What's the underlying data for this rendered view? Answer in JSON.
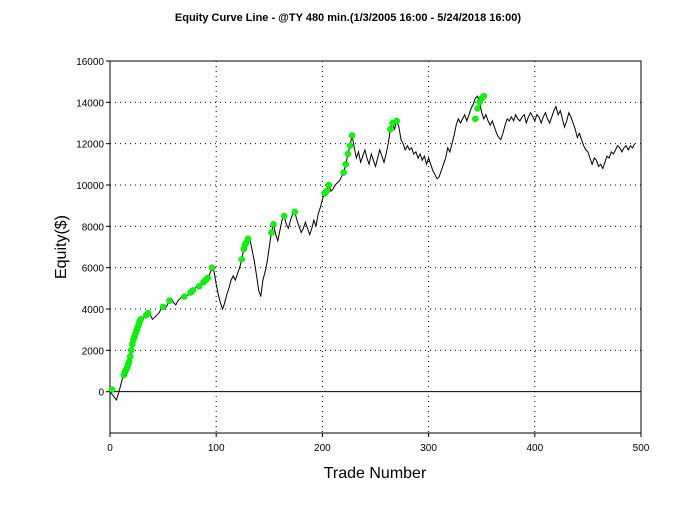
{
  "chart_data": {
    "type": "line",
    "title": "Equity Curve Line - @TY 480 min.(1/3/2005 16:00 - 5/24/2018 16:00)",
    "xlabel": "Trade Number",
    "ylabel": "Equity($)",
    "xlim": [
      0,
      500
    ],
    "ylim": [
      -2000,
      16000
    ],
    "xticks": [
      0,
      100,
      200,
      300,
      400,
      500
    ],
    "yticks": [
      0,
      2000,
      4000,
      6000,
      8000,
      10000,
      12000,
      14000,
      16000
    ],
    "grid": true,
    "series": [
      {
        "color": "#000000",
        "points": [
          [
            0,
            0
          ],
          [
            3,
            -200
          ],
          [
            6,
            -400
          ],
          [
            8,
            -100
          ],
          [
            10,
            300
          ],
          [
            12,
            700
          ],
          [
            14,
            1000
          ],
          [
            16,
            1100
          ],
          [
            18,
            1500
          ],
          [
            20,
            2000
          ],
          [
            22,
            2500
          ],
          [
            24,
            2800
          ],
          [
            26,
            3100
          ],
          [
            28,
            3300
          ],
          [
            30,
            3500
          ],
          [
            32,
            3600
          ],
          [
            34,
            3700
          ],
          [
            36,
            3800
          ],
          [
            38,
            3700
          ],
          [
            40,
            3500
          ],
          [
            42,
            3600
          ],
          [
            44,
            3700
          ],
          [
            46,
            3800
          ],
          [
            48,
            4000
          ],
          [
            50,
            4100
          ],
          [
            52,
            4000
          ],
          [
            54,
            4200
          ],
          [
            56,
            4400
          ],
          [
            58,
            4500
          ],
          [
            60,
            4300
          ],
          [
            62,
            4200
          ],
          [
            64,
            4400
          ],
          [
            66,
            4500
          ],
          [
            68,
            4600
          ],
          [
            70,
            4700
          ],
          [
            72,
            4600
          ],
          [
            74,
            4700
          ],
          [
            76,
            4800
          ],
          [
            78,
            4900
          ],
          [
            80,
            5000
          ],
          [
            82,
            5100
          ],
          [
            84,
            5100
          ],
          [
            86,
            5200
          ],
          [
            88,
            5300
          ],
          [
            90,
            5400
          ],
          [
            92,
            5500
          ],
          [
            94,
            5700
          ],
          [
            96,
            6000
          ],
          [
            98,
            5800
          ],
          [
            100,
            5200
          ],
          [
            102,
            4700
          ],
          [
            104,
            4300
          ],
          [
            106,
            4000
          ],
          [
            108,
            4300
          ],
          [
            110,
            4700
          ],
          [
            112,
            5000
          ],
          [
            114,
            5400
          ],
          [
            116,
            5600
          ],
          [
            118,
            5400
          ],
          [
            120,
            5700
          ],
          [
            122,
            6000
          ],
          [
            124,
            6400
          ],
          [
            126,
            6900
          ],
          [
            128,
            7200
          ],
          [
            130,
            7400
          ],
          [
            132,
            7300
          ],
          [
            134,
            6800
          ],
          [
            136,
            6300
          ],
          [
            138,
            5600
          ],
          [
            140,
            4900
          ],
          [
            142,
            4600
          ],
          [
            144,
            5400
          ],
          [
            146,
            5800
          ],
          [
            148,
            6300
          ],
          [
            150,
            7000
          ],
          [
            152,
            7700
          ],
          [
            154,
            8100
          ],
          [
            156,
            7600
          ],
          [
            158,
            7300
          ],
          [
            160,
            7800
          ],
          [
            162,
            8300
          ],
          [
            164,
            8500
          ],
          [
            166,
            8100
          ],
          [
            168,
            7900
          ],
          [
            170,
            8300
          ],
          [
            172,
            8600
          ],
          [
            174,
            8700
          ],
          [
            176,
            8300
          ],
          [
            178,
            8000
          ],
          [
            180,
            7700
          ],
          [
            182,
            7900
          ],
          [
            184,
            8200
          ],
          [
            186,
            7900
          ],
          [
            188,
            7600
          ],
          [
            190,
            7900
          ],
          [
            192,
            8300
          ],
          [
            194,
            8000
          ],
          [
            196,
            8600
          ],
          [
            198,
            8900
          ],
          [
            200,
            9300
          ],
          [
            202,
            9600
          ],
          [
            204,
            9700
          ],
          [
            206,
            10000
          ],
          [
            208,
            9700
          ],
          [
            210,
            9800
          ],
          [
            212,
            10000
          ],
          [
            214,
            10100
          ],
          [
            216,
            10200
          ],
          [
            218,
            10400
          ],
          [
            220,
            10600
          ],
          [
            222,
            11000
          ],
          [
            224,
            11500
          ],
          [
            226,
            11900
          ],
          [
            228,
            12400
          ],
          [
            230,
            11800
          ],
          [
            232,
            11300
          ],
          [
            234,
            11600
          ],
          [
            236,
            11100
          ],
          [
            238,
            11400
          ],
          [
            240,
            11700
          ],
          [
            242,
            11300
          ],
          [
            244,
            11000
          ],
          [
            246,
            11500
          ],
          [
            248,
            11200
          ],
          [
            250,
            10900
          ],
          [
            252,
            11300
          ],
          [
            254,
            11700
          ],
          [
            256,
            11400
          ],
          [
            258,
            11100
          ],
          [
            260,
            11500
          ],
          [
            262,
            12000
          ],
          [
            264,
            12700
          ],
          [
            266,
            13000
          ],
          [
            268,
            12700
          ],
          [
            270,
            13100
          ],
          [
            272,
            12800
          ],
          [
            274,
            12200
          ],
          [
            276,
            12000
          ],
          [
            278,
            11700
          ],
          [
            280,
            11900
          ],
          [
            282,
            11700
          ],
          [
            284,
            11800
          ],
          [
            286,
            11500
          ],
          [
            288,
            11600
          ],
          [
            290,
            11300
          ],
          [
            292,
            11500
          ],
          [
            294,
            11200
          ],
          [
            296,
            11400
          ],
          [
            298,
            11000
          ],
          [
            300,
            11300
          ],
          [
            302,
            11000
          ],
          [
            304,
            10700
          ],
          [
            306,
            10500
          ],
          [
            308,
            10300
          ],
          [
            310,
            10400
          ],
          [
            312,
            10700
          ],
          [
            314,
            11000
          ],
          [
            316,
            11300
          ],
          [
            318,
            11800
          ],
          [
            320,
            11600
          ],
          [
            322,
            12000
          ],
          [
            324,
            12400
          ],
          [
            326,
            12900
          ],
          [
            328,
            13200
          ],
          [
            330,
            13000
          ],
          [
            332,
            13200
          ],
          [
            334,
            13400
          ],
          [
            336,
            13100
          ],
          [
            338,
            13400
          ],
          [
            340,
            13700
          ],
          [
            342,
            13900
          ],
          [
            344,
            14200
          ],
          [
            346,
            14300
          ],
          [
            348,
            14000
          ],
          [
            350,
            13500
          ],
          [
            352,
            13200
          ],
          [
            354,
            13400
          ],
          [
            356,
            13100
          ],
          [
            358,
            12900
          ],
          [
            360,
            13100
          ],
          [
            362,
            12800
          ],
          [
            364,
            12500
          ],
          [
            366,
            12300
          ],
          [
            368,
            12200
          ],
          [
            370,
            12500
          ],
          [
            372,
            12900
          ],
          [
            374,
            13200
          ],
          [
            376,
            13100
          ],
          [
            378,
            13300
          ],
          [
            380,
            13100
          ],
          [
            382,
            13400
          ],
          [
            384,
            13200
          ],
          [
            386,
            13100
          ],
          [
            388,
            13300
          ],
          [
            390,
            13400
          ],
          [
            392,
            13000
          ],
          [
            394,
            13300
          ],
          [
            396,
            13500
          ],
          [
            398,
            13300
          ],
          [
            400,
            13100
          ],
          [
            402,
            13400
          ],
          [
            404,
            13300
          ],
          [
            406,
            13000
          ],
          [
            408,
            13300
          ],
          [
            410,
            13500
          ],
          [
            412,
            13200
          ],
          [
            414,
            13000
          ],
          [
            416,
            13300
          ],
          [
            418,
            13600
          ],
          [
            420,
            13800
          ],
          [
            422,
            13400
          ],
          [
            424,
            13600
          ],
          [
            426,
            13200
          ],
          [
            428,
            12800
          ],
          [
            430,
            13100
          ],
          [
            432,
            13500
          ],
          [
            434,
            13300
          ],
          [
            436,
            13000
          ],
          [
            438,
            12700
          ],
          [
            440,
            12300
          ],
          [
            442,
            12500
          ],
          [
            444,
            12200
          ],
          [
            446,
            11900
          ],
          [
            448,
            11700
          ],
          [
            450,
            11600
          ],
          [
            452,
            11300
          ],
          [
            454,
            11000
          ],
          [
            456,
            11300
          ],
          [
            458,
            11200
          ],
          [
            460,
            10900
          ],
          [
            462,
            11000
          ],
          [
            464,
            10800
          ],
          [
            466,
            11100
          ],
          [
            468,
            11400
          ],
          [
            470,
            11300
          ],
          [
            472,
            11600
          ],
          [
            474,
            11500
          ],
          [
            476,
            11700
          ],
          [
            478,
            11900
          ],
          [
            480,
            11800
          ],
          [
            482,
            11600
          ],
          [
            484,
            11800
          ],
          [
            486,
            11900
          ],
          [
            488,
            11700
          ],
          [
            490,
            11900
          ],
          [
            492,
            11800
          ],
          [
            494,
            12000
          ]
        ]
      }
    ],
    "highlight_points": {
      "color": "#00ff00",
      "points": [
        [
          2,
          100
        ],
        [
          13,
          800
        ],
        [
          14,
          950
        ],
        [
          15,
          1050
        ],
        [
          16,
          1150
        ],
        [
          17,
          1300
        ],
        [
          18,
          1450
        ],
        [
          19,
          1700
        ],
        [
          20,
          2000
        ],
        [
          21,
          2300
        ],
        [
          22,
          2500
        ],
        [
          23,
          2650
        ],
        [
          24,
          2800
        ],
        [
          25,
          2950
        ],
        [
          26,
          3100
        ],
        [
          27,
          3250
        ],
        [
          28,
          3400
        ],
        [
          29,
          3500
        ],
        [
          34,
          3700
        ],
        [
          36,
          3800
        ],
        [
          50,
          4100
        ],
        [
          56,
          4400
        ],
        [
          70,
          4600
        ],
        [
          76,
          4800
        ],
        [
          78,
          4900
        ],
        [
          84,
          5100
        ],
        [
          88,
          5300
        ],
        [
          90,
          5400
        ],
        [
          92,
          5500
        ],
        [
          96,
          6000
        ],
        [
          124,
          6400
        ],
        [
          126,
          6900
        ],
        [
          127,
          7100
        ],
        [
          128,
          7200
        ],
        [
          130,
          7400
        ],
        [
          152,
          7700
        ],
        [
          154,
          8100
        ],
        [
          164,
          8500
        ],
        [
          174,
          8700
        ],
        [
          202,
          9600
        ],
        [
          204,
          9700
        ],
        [
          206,
          10000
        ],
        [
          220,
          10600
        ],
        [
          222,
          11000
        ],
        [
          224,
          11500
        ],
        [
          226,
          11900
        ],
        [
          228,
          12400
        ],
        [
          264,
          12700
        ],
        [
          266,
          13000
        ],
        [
          270,
          13100
        ],
        [
          344,
          13200
        ],
        [
          346,
          13700
        ],
        [
          348,
          14000
        ],
        [
          350,
          14200
        ],
        [
          352,
          14300
        ]
      ]
    }
  }
}
